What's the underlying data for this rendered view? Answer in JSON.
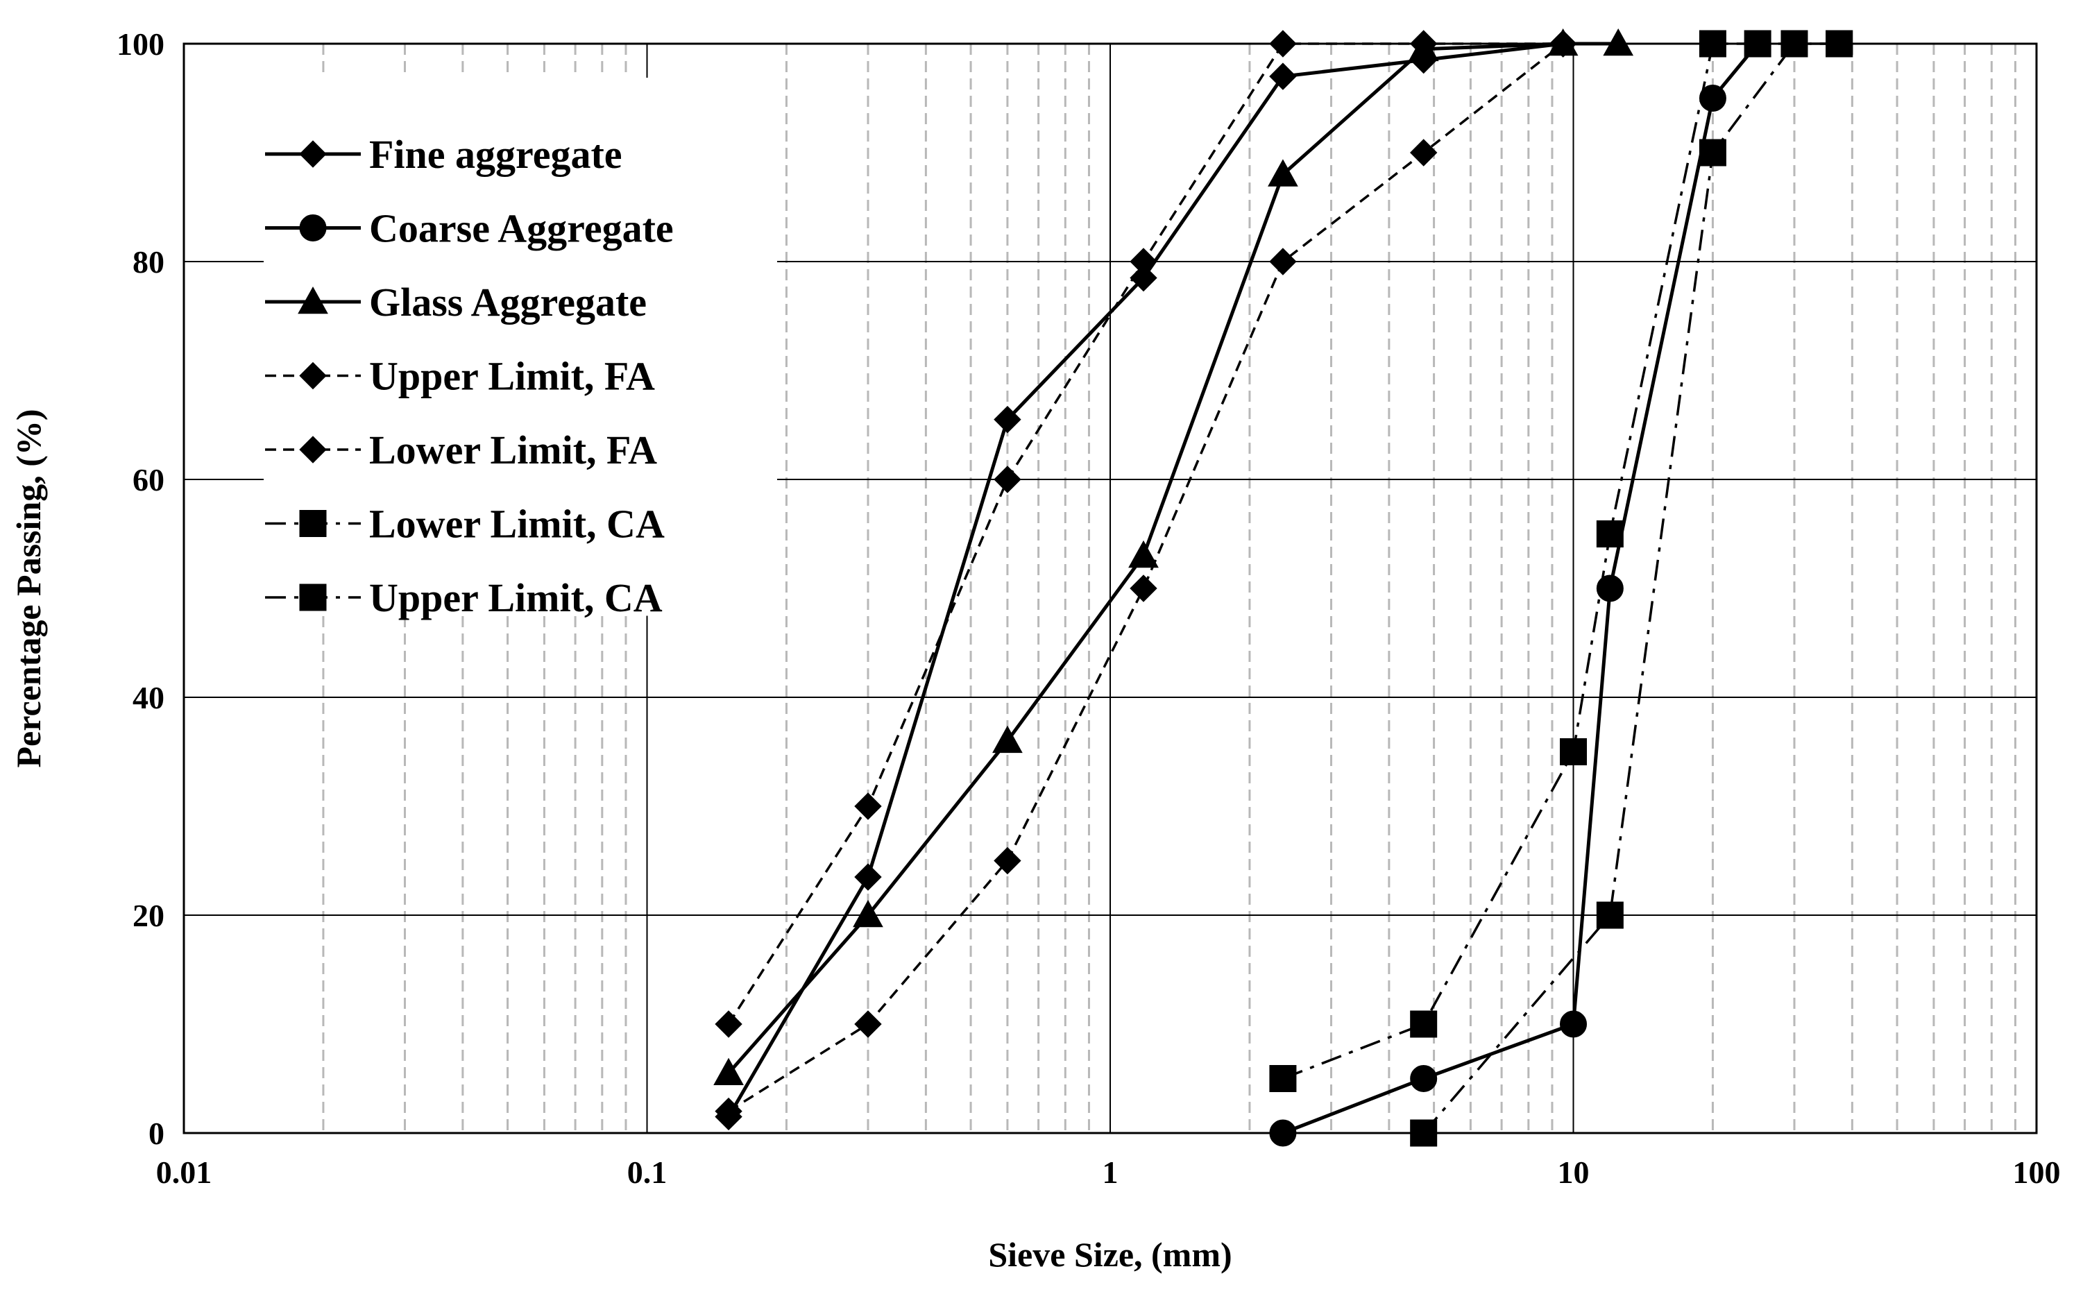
{
  "chart_data": {
    "type": "line",
    "title": "",
    "xlabel": "Sieve Size, (mm)",
    "ylabel": "Percentage Passing, (%)",
    "xscale": "log",
    "xlim": [
      0.01,
      100
    ],
    "ylim": [
      0,
      100
    ],
    "xticks": [
      0.01,
      0.1,
      1,
      10,
      100
    ],
    "xtick_labels": [
      "0.01",
      "0.1",
      "1",
      "10",
      "100"
    ],
    "yticks": [
      0,
      20,
      40,
      60,
      80,
      100
    ],
    "ytick_labels": [
      "0",
      "20",
      "40",
      "60",
      "80",
      "100"
    ],
    "grid": "major solid, minor dashed on x",
    "legend_position": "top-left",
    "series": [
      {
        "name": "Fine aggregate",
        "line": "solid",
        "marker": "diamond",
        "x": [
          0.15,
          0.3,
          0.6,
          1.18,
          2.36,
          4.75,
          9.5
        ],
        "y": [
          1.5,
          23.5,
          65.5,
          78.5,
          97,
          98.5,
          100
        ]
      },
      {
        "name": "Coarse Aggregate",
        "line": "solid",
        "marker": "circle",
        "x": [
          2.36,
          4.75,
          10,
          12,
          20,
          25
        ],
        "y": [
          0,
          5,
          10,
          50,
          95,
          100
        ]
      },
      {
        "name": "Glass Aggregate",
        "line": "solid",
        "marker": "triangle",
        "x": [
          0.15,
          0.3,
          0.6,
          1.18,
          2.36,
          4.75,
          9.5,
          12.5
        ],
        "y": [
          5.5,
          20,
          36,
          53,
          88,
          99.5,
          100,
          100
        ]
      },
      {
        "name": "Upper Limit, FA",
        "line": "dashed",
        "marker": "diamond",
        "x": [
          0.15,
          0.3,
          0.6,
          1.18,
          2.36,
          4.75,
          9.5
        ],
        "y": [
          10,
          30,
          60,
          80,
          100,
          100,
          100
        ]
      },
      {
        "name": "Lower Limit, FA",
        "line": "dashed",
        "marker": "diamond",
        "x": [
          0.15,
          0.3,
          0.6,
          1.18,
          2.36,
          4.75,
          9.5
        ],
        "y": [
          2,
          10,
          25,
          50,
          80,
          90,
          100
        ]
      },
      {
        "name": "Lower Limit, CA",
        "line": "dashdot",
        "marker": "square",
        "x": [
          4.75,
          12,
          20,
          30,
          37.5
        ],
        "y": [
          0,
          20,
          90,
          100,
          100
        ]
      },
      {
        "name": "Upper Limit, CA",
        "line": "dashdot",
        "marker": "square",
        "x": [
          2.36,
          4.75,
          10,
          12,
          20,
          25,
          37.5
        ],
        "y": [
          5,
          10,
          35,
          55,
          100,
          100,
          100
        ]
      }
    ]
  }
}
